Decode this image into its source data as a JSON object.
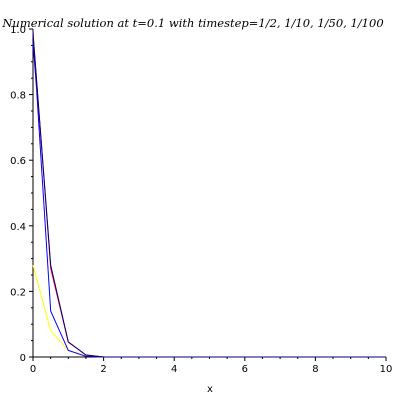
{
  "chart_data": {
    "type": "line",
    "title": "Numerical solution at t=0.1 with timestep=1/2, 1/10, 1/50, 1/100",
    "xlabel": "x",
    "ylabel": "",
    "xlim": [
      0,
      10
    ],
    "ylim": [
      0,
      1
    ],
    "grid": false,
    "x_ticks": [
      "0",
      "2",
      "4",
      "6",
      "8",
      "10"
    ],
    "y_ticks": [
      "0",
      "0.2",
      "0.4",
      "0.6",
      "0.8",
      "1.0"
    ],
    "series": [
      {
        "color": "#ffff00",
        "x": [
          0,
          0.5,
          1.0,
          1.5,
          2.0,
          10
        ],
        "y": [
          0.28,
          0.08,
          0.02,
          0.003,
          0.0,
          0.0
        ]
      },
      {
        "color": "#0000ff",
        "x": [
          0,
          0.1,
          0.5,
          1.0,
          1.5,
          2.0,
          10
        ],
        "y": [
          0.96,
          0.82,
          0.14,
          0.02,
          0.002,
          0.0,
          0.0
        ]
      },
      {
        "color": "#ff0000",
        "x": [
          0,
          0.02,
          0.5,
          1.0,
          1.5,
          2.0,
          10
        ],
        "y": [
          0.99,
          0.96,
          0.27,
          0.045,
          0.006,
          0.0,
          0.0
        ]
      },
      {
        "color": "#000080",
        "x": [
          0,
          0.01,
          0.5,
          1.0,
          1.5,
          2.0,
          10
        ],
        "y": [
          0.995,
          0.97,
          0.28,
          0.046,
          0.006,
          0.0,
          0.0
        ]
      }
    ]
  }
}
